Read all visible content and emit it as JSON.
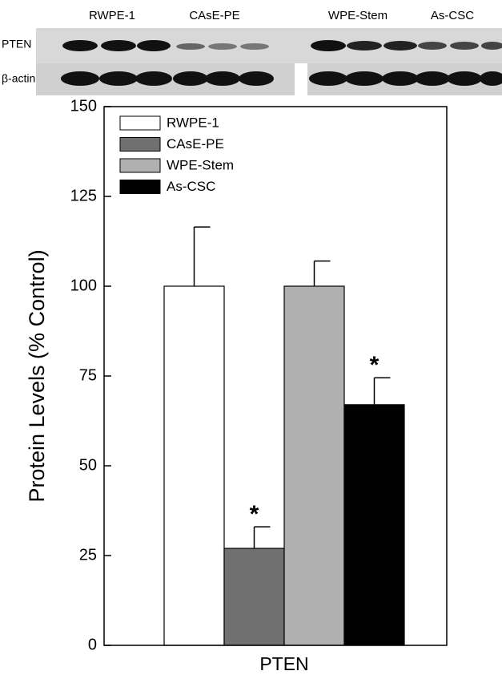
{
  "blot": {
    "lanes": [
      "RWPE-1",
      "CAsE-PE",
      "WPE-Stem",
      "As-CSC"
    ],
    "rows": [
      "PTEN",
      "β-actin"
    ]
  },
  "chart_data": {
    "type": "bar",
    "categories": [
      "PTEN"
    ],
    "y_label": "Protein Levels (% Control)",
    "ylim": [
      0,
      150
    ],
    "yticks": [
      0,
      25,
      50,
      75,
      100,
      125,
      150
    ],
    "legend": "top-left",
    "series": [
      {
        "name": "RWPE-1",
        "color": "#ffffff",
        "values": [
          100
        ],
        "errors": [
          16.5
        ]
      },
      {
        "name": "CAsE-PE",
        "color": "#707070",
        "values": [
          27
        ],
        "errors": [
          6
        ],
        "annotation": "*"
      },
      {
        "name": "WPE-Stem",
        "color": "#b0b0b0",
        "values": [
          100
        ],
        "errors": [
          7
        ]
      },
      {
        "name": "As-CSC",
        "color": "#000000",
        "values": [
          67
        ],
        "errors": [
          7.5
        ],
        "annotation": "*"
      }
    ]
  }
}
